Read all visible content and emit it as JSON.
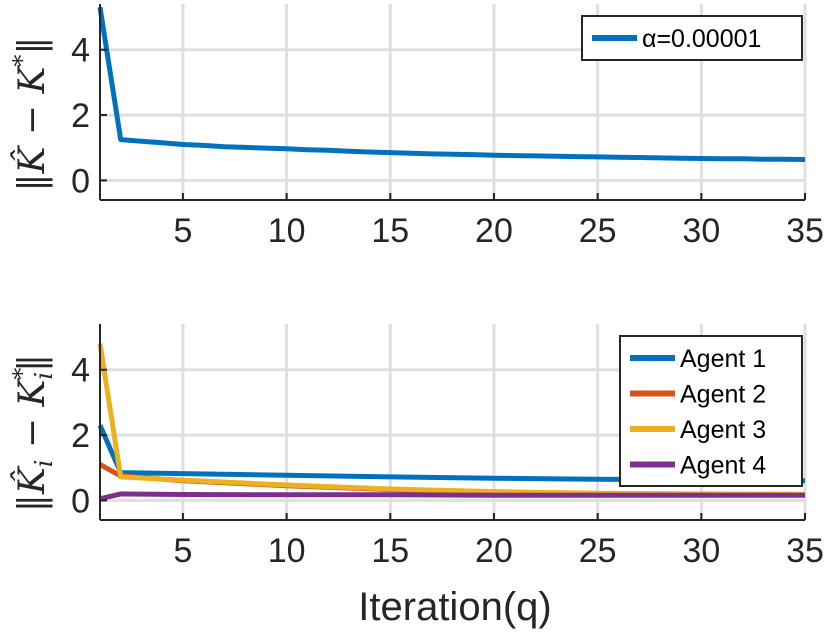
{
  "chart_data": [
    {
      "type": "line",
      "ylabel": "‖K̂ − K*‖",
      "xlabel": "",
      "xlim": [
        1,
        35
      ],
      "ylim": [
        -0.6,
        5.4
      ],
      "xticks": [
        5,
        10,
        15,
        20,
        25,
        30,
        35
      ],
      "yticks": [
        0,
        2,
        4
      ],
      "grid": true,
      "legend_position": "top-right",
      "series": [
        {
          "name": "α=0.00001",
          "color": "#0072BD",
          "x": [
            1,
            2,
            3,
            4,
            5,
            6,
            7,
            8,
            9,
            10,
            11,
            12,
            13,
            14,
            15,
            16,
            17,
            18,
            19,
            20,
            21,
            22,
            23,
            24,
            25,
            26,
            27,
            28,
            29,
            30,
            31,
            32,
            33,
            34,
            35
          ],
          "values": [
            5.3,
            1.25,
            1.2,
            1.15,
            1.1,
            1.07,
            1.03,
            1.01,
            0.99,
            0.97,
            0.94,
            0.92,
            0.89,
            0.87,
            0.85,
            0.83,
            0.81,
            0.8,
            0.79,
            0.77,
            0.76,
            0.75,
            0.74,
            0.73,
            0.72,
            0.71,
            0.7,
            0.69,
            0.68,
            0.67,
            0.66,
            0.66,
            0.65,
            0.65,
            0.64
          ]
        }
      ]
    },
    {
      "type": "line",
      "ylabel": "‖K̂ᵢ − Kᵢ*‖",
      "xlabel": "Iteration(q)",
      "xlim": [
        1,
        35
      ],
      "ylim": [
        -0.6,
        5.4
      ],
      "xticks": [
        5,
        10,
        15,
        20,
        25,
        30,
        35
      ],
      "yticks": [
        0,
        2,
        4
      ],
      "grid": true,
      "legend_position": "top-right",
      "series": [
        {
          "name": "Agent 1",
          "color": "#0072BD",
          "x": [
            1,
            2,
            5,
            10,
            15,
            20,
            25,
            30,
            35
          ],
          "values": [
            2.3,
            0.85,
            0.82,
            0.77,
            0.72,
            0.68,
            0.65,
            0.62,
            0.6
          ]
        },
        {
          "name": "Agent 2",
          "color": "#D95319",
          "x": [
            1,
            2,
            5,
            10,
            15,
            20,
            25,
            30,
            35
          ],
          "values": [
            1.1,
            0.75,
            0.6,
            0.45,
            0.33,
            0.25,
            0.2,
            0.18,
            0.17
          ]
        },
        {
          "name": "Agent 3",
          "color": "#EDB120",
          "x": [
            1,
            2,
            5,
            10,
            15,
            20,
            25,
            30,
            35
          ],
          "values": [
            4.8,
            0.72,
            0.62,
            0.47,
            0.35,
            0.27,
            0.22,
            0.2,
            0.19
          ]
        },
        {
          "name": "Agent 4",
          "color": "#7E2F8E",
          "x": [
            1,
            2,
            5,
            10,
            15,
            20,
            25,
            30,
            35
          ],
          "values": [
            0.05,
            0.2,
            0.18,
            0.17,
            0.17,
            0.16,
            0.16,
            0.16,
            0.16
          ]
        }
      ]
    }
  ]
}
